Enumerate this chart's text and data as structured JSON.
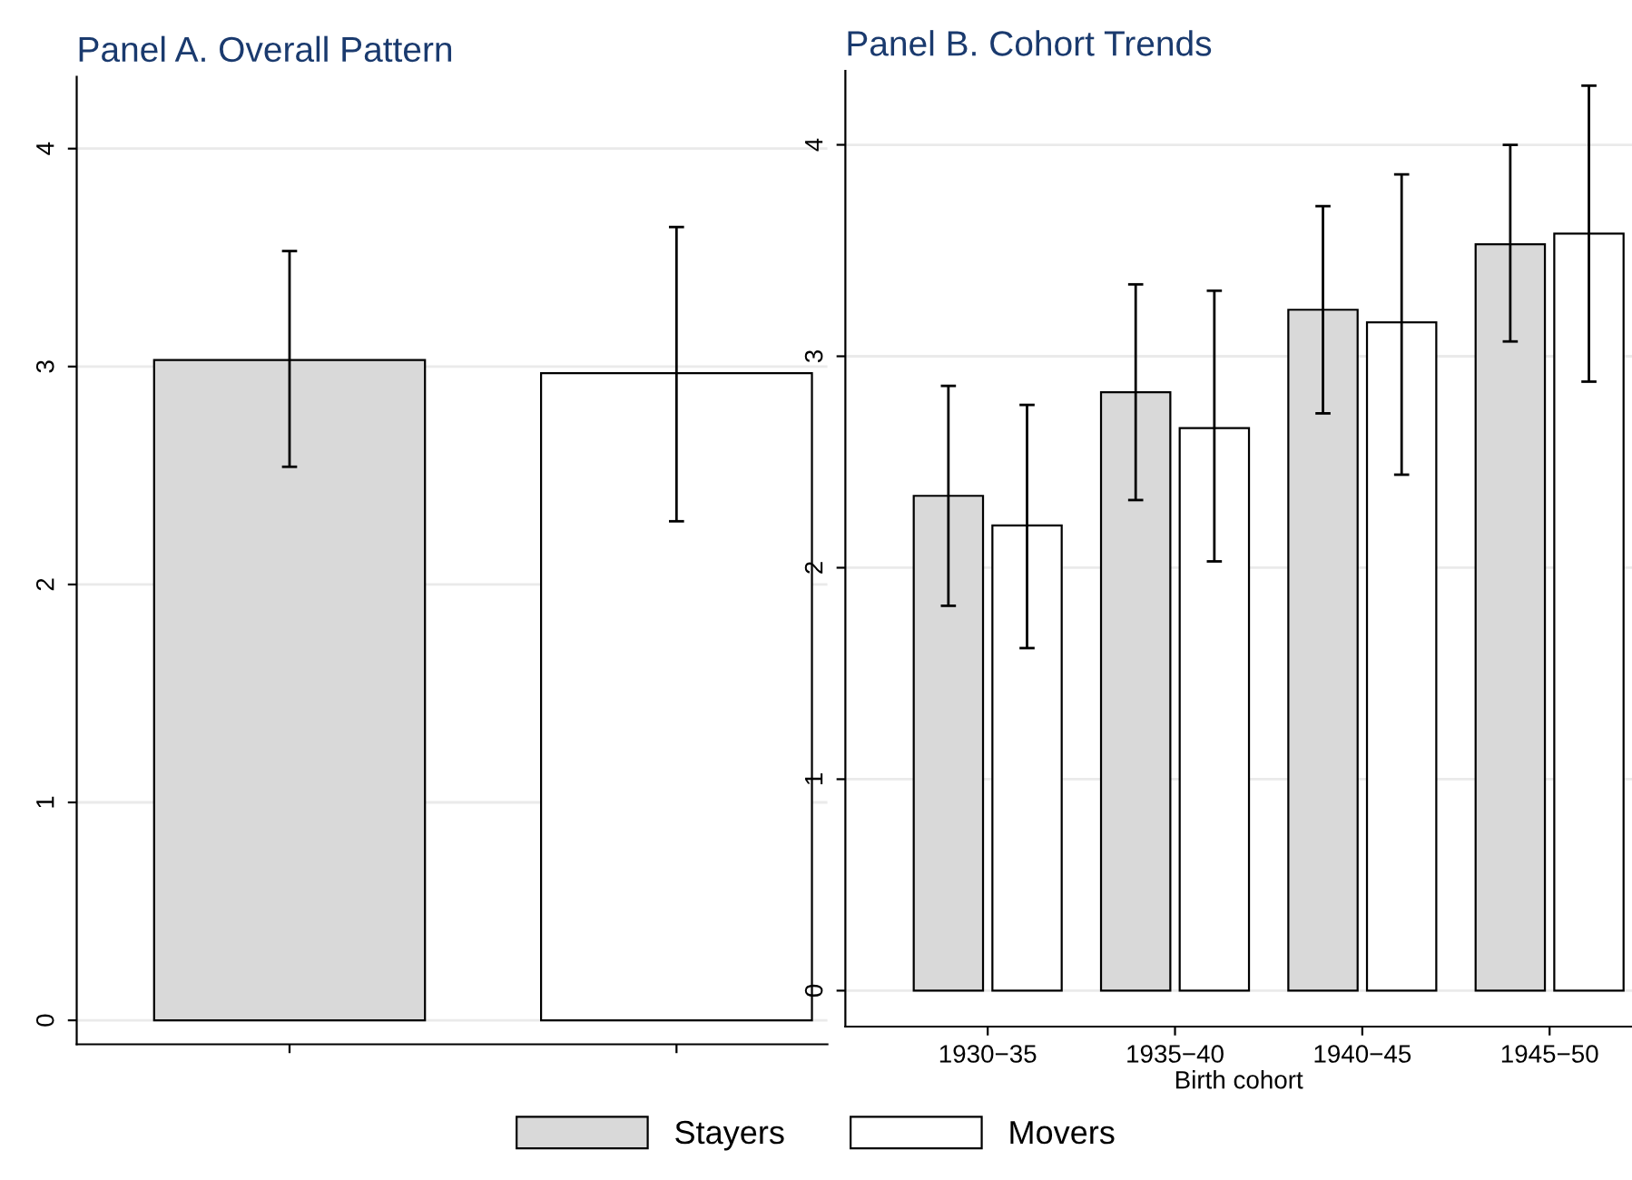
{
  "chart_data": [
    {
      "type": "bar",
      "title": "Panel A. Overall Pattern",
      "categories": [
        null,
        null
      ],
      "series": [
        {
          "name": "Stayers",
          "color": "#d9d9d9",
          "values": [
            3.03,
            null
          ],
          "errors": [
            [
              2.54,
              3.53
            ],
            null
          ]
        },
        {
          "name": "Movers",
          "color": "#ffffff",
          "values": [
            null,
            2.97
          ],
          "errors": [
            null,
            [
              2.29,
              3.64
            ]
          ]
        }
      ],
      "ylim": [
        -0.11,
        4.33
      ],
      "yticks": [
        0,
        1,
        2,
        3,
        4
      ],
      "grid": "y",
      "legend": "bottom"
    },
    {
      "type": "bar",
      "title": "Panel B. Cohort Trends",
      "xlabel": "Birth cohort",
      "categories": [
        "1930−35",
        "1935−40",
        "1940−45",
        "1945−50"
      ],
      "series": [
        {
          "name": "Stayers",
          "color": "#d9d9d9",
          "values": [
            2.34,
            2.83,
            3.22,
            3.53
          ],
          "errors": [
            [
              1.82,
              2.86
            ],
            [
              2.32,
              3.34
            ],
            [
              2.73,
              3.71
            ],
            [
              3.07,
              4.0
            ]
          ]
        },
        {
          "name": "Movers",
          "color": "#ffffff",
          "values": [
            2.2,
            2.66,
            3.16,
            3.58
          ],
          "errors": [
            [
              1.62,
              2.77
            ],
            [
              2.03,
              3.31
            ],
            [
              2.44,
              3.86
            ],
            [
              2.88,
              4.28
            ]
          ]
        }
      ],
      "ylim": [
        -0.17,
        4.35
      ],
      "yticks": [
        0,
        1,
        2,
        3,
        4
      ],
      "grid": "y",
      "legend": "bottom"
    }
  ]
}
